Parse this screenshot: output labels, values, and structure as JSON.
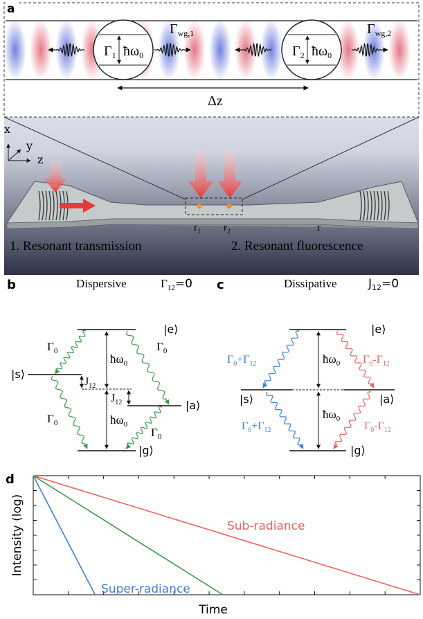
{
  "colors": {
    "red": "#e8393a",
    "blue": "#3c7fe0",
    "green": "#3a9a4a",
    "salmon": "#f06060",
    "dark": "#1a1a2e"
  },
  "panel_labels": {
    "a": "a",
    "b": "b",
    "c": "c",
    "d": "d"
  },
  "panel_a": {
    "gamma1": "Γ",
    "gamma1_sub": "1",
    "gamma2": "Γ",
    "gamma2_sub": "2",
    "hbar": "ħω",
    "hbar_sub": "0",
    "gwg1": "Γ",
    "gwg1_sub": "wg,1",
    "gwg2": "Γ",
    "gwg2_sub": "wg,2",
    "dz": "Δz",
    "axis_x": "x",
    "axis_y": "y",
    "axis_z": "z",
    "r1": "r",
    "r1_sub": "1",
    "r2": "r",
    "r2_sub": "2",
    "r": "r",
    "caption1": "1.  Resonant transmission",
    "caption2": "2. Resonant fluorescence"
  },
  "panel_b": {
    "title": "Dispersive",
    "cond": "Γ",
    "cond_sub": "12",
    "cond_val": "=0",
    "e": "|e⟩",
    "s": "|s⟩",
    "a": "|a⟩",
    "g": "|g⟩",
    "g0": "Γ",
    "g0_sub": "0",
    "hw": "ħω",
    "hw_sub": "0",
    "j": "J",
    "j_sub": "12"
  },
  "panel_c": {
    "title": "Dissipative",
    "cond": "J",
    "cond_sub": "12",
    "cond_val": "=0",
    "e": "|e⟩",
    "s": "|s⟩",
    "a": "|a⟩",
    "g": "|g⟩",
    "plus": "Γ",
    "plus_sub": "0",
    "plus_tail": "+Γ",
    "plus_tail_sub": "12",
    "minus": "Γ",
    "minus_sub": "0",
    "minus_tail": "-Γ",
    "minus_tail_sub": "12",
    "hw": "ħω",
    "hw_sub": "0"
  },
  "chart_data": {
    "type": "line",
    "xlabel": "Time",
    "ylabel": "Intensity (log)",
    "scale_y": "log",
    "series": [
      {
        "name": "Super-radiance",
        "x": [
          0,
          0.16
        ],
        "y": [
          1,
          0
        ],
        "color": "#3c7fe0"
      },
      {
        "name": "",
        "x": [
          0,
          0.49
        ],
        "y": [
          1,
          0
        ],
        "color": "#3a9a4a"
      },
      {
        "name": "Sub-radiance",
        "x": [
          0,
          1
        ],
        "y": [
          1,
          0
        ],
        "color": "#f06060"
      }
    ],
    "xlim": [
      0,
      1
    ],
    "ylim": [
      0,
      1
    ],
    "annotations": [
      "Super-radiance",
      "Sub-radiance"
    ]
  }
}
